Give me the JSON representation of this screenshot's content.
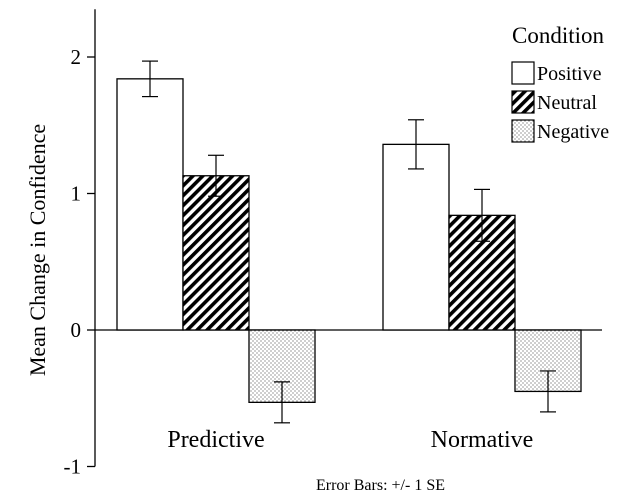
{
  "chart_data": {
    "type": "bar",
    "ylabel": "Mean Change in Confidence",
    "categories": [
      "Predictive",
      "Normative"
    ],
    "ylim": [
      -1,
      2.35
    ],
    "yticks": [
      -1,
      0,
      1,
      2
    ],
    "yticklabels": [
      "-1",
      "0",
      "1",
      "2"
    ],
    "legend": {
      "title": "Condition",
      "placement": "top-right"
    },
    "series": [
      {
        "name": "Positive",
        "pattern": "white",
        "values": [
          1.84,
          1.36
        ],
        "errors": [
          0.13,
          0.18
        ]
      },
      {
        "name": "Neutral",
        "pattern": "hatch",
        "values": [
          1.13,
          0.84
        ],
        "errors": [
          0.15,
          0.19
        ]
      },
      {
        "name": "Negative",
        "pattern": "dots",
        "values": [
          -0.53,
          -0.45
        ],
        "errors": [
          0.15,
          0.15
        ]
      }
    ],
    "note": "Error Bars: +/- 1 SE",
    "colors": {
      "bar_fill": "#ffffff",
      "hatch": "#000000",
      "stroke": "#000000"
    }
  }
}
